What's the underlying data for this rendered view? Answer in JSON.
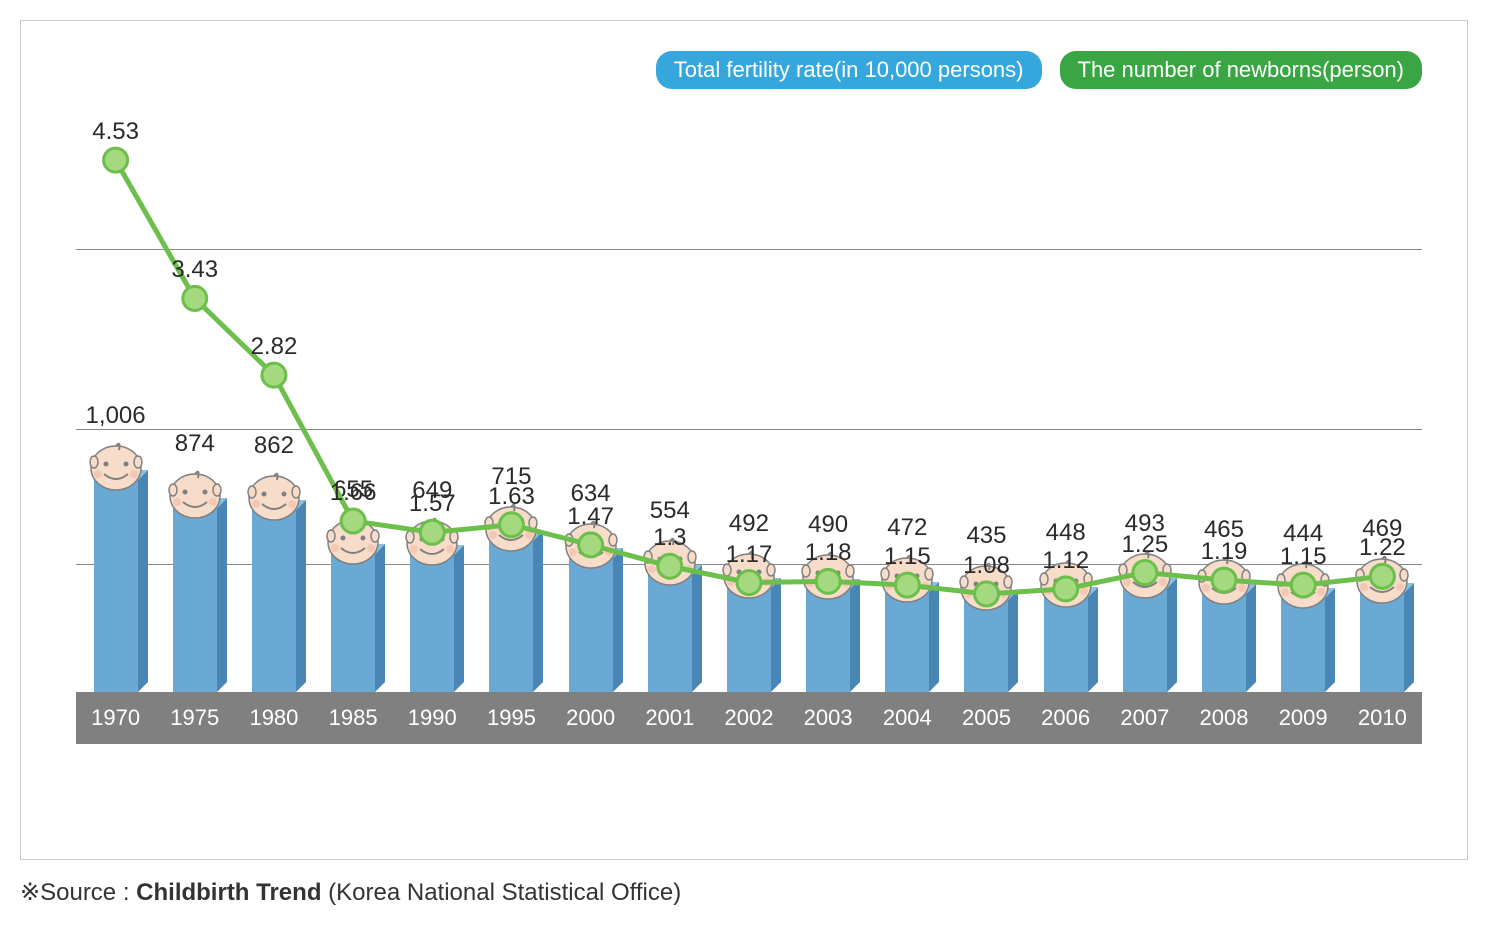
{
  "chart": {
    "type": "combo-bar-line",
    "categories": [
      "1970",
      "1975",
      "1980",
      "1985",
      "1990",
      "1995",
      "2000",
      "2001",
      "2002",
      "2003",
      "2004",
      "2005",
      "2006",
      "2007",
      "2008",
      "2009",
      "2010"
    ],
    "bar_series": {
      "name": "Total fertility rate(in 10,000 persons)",
      "values": [
        1006,
        874,
        862,
        655,
        649,
        715,
        634,
        554,
        492,
        490,
        472,
        435,
        448,
        493,
        465,
        444,
        469
      ],
      "display_values": [
        "1,006",
        "874",
        "862",
        "655",
        "649",
        "715",
        "634",
        "554",
        "492",
        "490",
        "472",
        "435",
        "448",
        "493",
        "465",
        "444",
        "469"
      ],
      "color_front": "#6aa9d4",
      "color_side": "#4a86b5",
      "color_top": "#8cc0e2",
      "legend_bg": "#36a7dd",
      "max_scale": 2800
    },
    "line_series": {
      "name": "The number of newborns(person)",
      "values": [
        4.53,
        3.43,
        2.82,
        1.66,
        1.57,
        1.63,
        1.47,
        1.3,
        1.17,
        1.18,
        1.15,
        1.08,
        1.12,
        1.25,
        1.19,
        1.15,
        1.22
      ],
      "display_values": [
        "4.53",
        "3.43",
        "2.82",
        "1.66",
        "1.57",
        "1.63",
        "1.47",
        "1.3",
        "1.17",
        "1.18",
        "1.15",
        "1.08",
        "1.12",
        "1.25",
        "1.19",
        "1.15",
        "1.22"
      ],
      "stroke": "#6bbf4a",
      "marker_fill": "#a4d97f",
      "legend_bg": "#3aa643",
      "y_min": 0.3,
      "y_max": 5.0
    },
    "gridlines_pct_from_top": [
      23,
      51,
      72
    ],
    "label_fontsize": 24,
    "legend_fontsize": 22,
    "axis_fontsize": 22,
    "background_color": "#ffffff",
    "frame_border_color": "#cccccc",
    "axis_band_color": "#808080",
    "axis_text_color": "#ffffff"
  },
  "source": {
    "prefix": "※Source : ",
    "title": "Childbirth Trend",
    "suffix": " (Korea National Statistical Office)"
  },
  "baby_icon": {
    "skin": "#f7dcc9",
    "outline": "#808080",
    "blush": "#f2b9a8"
  }
}
